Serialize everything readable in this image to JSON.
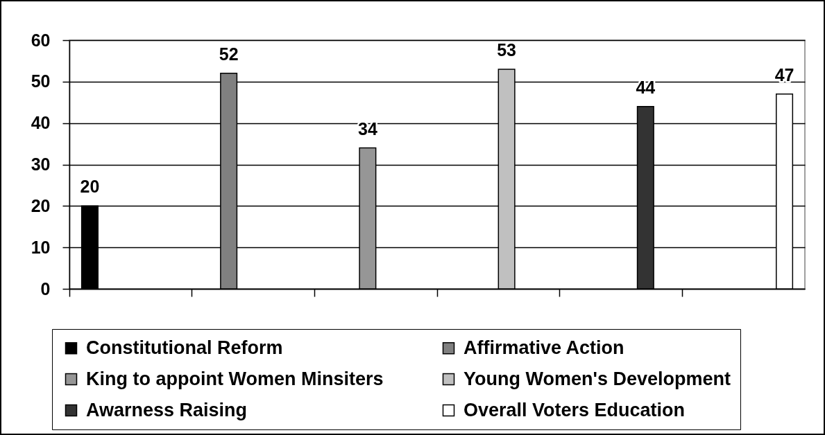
{
  "chart_data": {
    "type": "bar",
    "categories": [
      null,
      null,
      null,
      null,
      null,
      null
    ],
    "series": [
      {
        "name": "Constitutional Reform",
        "color": "#000000",
        "values": [
          20,
          null,
          null,
          null,
          null,
          null
        ]
      },
      {
        "name": "Affirmative Action",
        "color": "#808080",
        "values": [
          null,
          52,
          null,
          null,
          null,
          null
        ]
      },
      {
        "name": "King to appoint Women Minsiters",
        "color": "#969696",
        "values": [
          null,
          null,
          34,
          null,
          null,
          null
        ]
      },
      {
        "name": "Young Women's Development",
        "color": "#c0c0c0",
        "values": [
          null,
          null,
          null,
          53,
          null,
          null
        ]
      },
      {
        "name": "Awarness Raising",
        "color": "#333333",
        "values": [
          null,
          null,
          null,
          null,
          44,
          null
        ]
      },
      {
        "name": "Overall Voters Education",
        "color": "#ffffff",
        "values": [
          null,
          null,
          null,
          null,
          null,
          47
        ]
      }
    ],
    "ylim": [
      0,
      60
    ],
    "yticks": [
      0,
      10,
      20,
      30,
      40,
      50,
      60
    ],
    "grid": "y",
    "legend": "bottom",
    "data_labels": true,
    "tick_labels": "y"
  }
}
